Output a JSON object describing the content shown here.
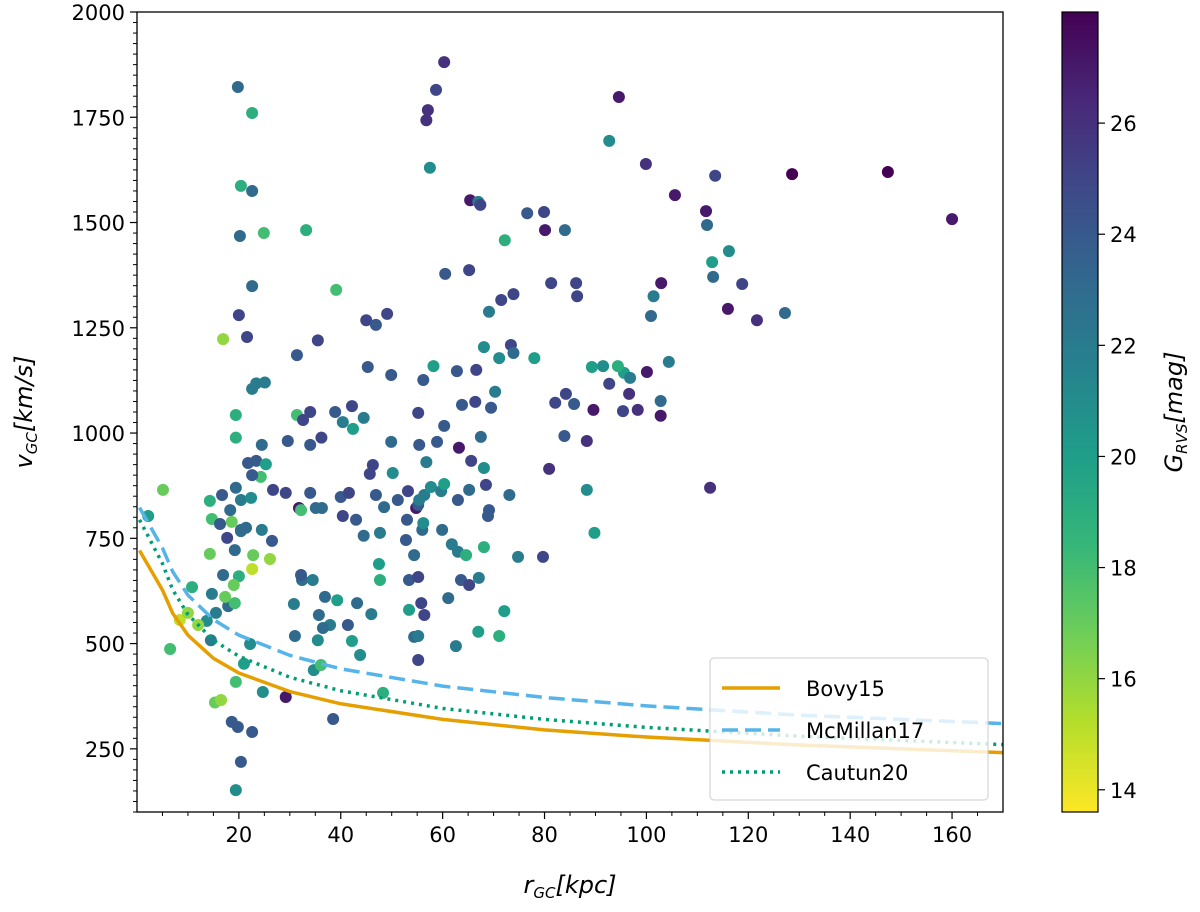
{
  "chart_data": {
    "type": "scatter",
    "xlabel": {
      "main": "r",
      "sub": "GC",
      "unit": "[kpc]"
    },
    "ylabel": {
      "main": "v",
      "sub": "GC",
      "unit": "[km/s]"
    },
    "colorbar_label": {
      "main": "G",
      "sub": "RVS",
      "unit": "[mag]"
    },
    "xlim": [
      0,
      170
    ],
    "ylim": [
      100,
      2000
    ],
    "clim": [
      13.6,
      28
    ],
    "colormap": "viridis_r",
    "xticks": [
      "20",
      "40",
      "60",
      "80",
      "100",
      "120",
      "140",
      "160"
    ],
    "yticks": [
      "250",
      "500",
      "750",
      "1000",
      "1250",
      "1500",
      "1750",
      "2000"
    ],
    "cticks": [
      "14",
      "16",
      "18",
      "20",
      "22",
      "24",
      "26"
    ],
    "grid": false,
    "legend_placement": "lower-right",
    "lines": [
      {
        "name": "Bovy15",
        "color": "#e69f00",
        "style": "solid",
        "r": [
          3,
          5,
          7,
          10,
          15,
          20,
          30,
          40,
          60,
          80,
          100,
          130,
          170
        ],
        "v": [
          721,
          627,
          572,
          520,
          465,
          430,
          386,
          357,
          320,
          295,
          278,
          259,
          241
        ]
      },
      {
        "name": "McMillan17",
        "color": "#56b4e9",
        "style": "dashed",
        "r": [
          3,
          5,
          7,
          10,
          15,
          20,
          30,
          40,
          60,
          80,
          100,
          130,
          170
        ],
        "v": [
          823,
          727,
          671,
          615,
          557,
          520,
          472,
          440,
          399,
          372,
          352,
          330,
          310
        ]
      },
      {
        "name": "Cautun20",
        "color": "#009e73",
        "style": "dotted",
        "r": [
          3,
          5,
          7,
          10,
          15,
          20,
          30,
          40,
          60,
          80,
          100,
          130,
          170
        ],
        "v": [
          794,
          690,
          628,
          569,
          508,
          470,
          420,
          388,
          346,
          320,
          301,
          280,
          260
        ]
      }
    ],
    "points": [
      [
        19.8,
        1822,
        23
      ],
      [
        22.6,
        1760,
        19
      ],
      [
        20.4,
        1587,
        19
      ],
      [
        22.6,
        1575,
        23
      ],
      [
        20.2,
        1468,
        23
      ],
      [
        24.9,
        1475,
        18
      ],
      [
        33.2,
        1482,
        19
      ],
      [
        22.6,
        1349,
        23
      ],
      [
        20.0,
        1280,
        25
      ],
      [
        16.9,
        1223,
        16
      ],
      [
        21.6,
        1228,
        25
      ],
      [
        39.1,
        1340,
        18
      ],
      [
        31.4,
        1185,
        24
      ],
      [
        35.5,
        1220,
        25
      ],
      [
        23.4,
        1118,
        22
      ],
      [
        25.1,
        1120,
        22
      ],
      [
        22.6,
        1105,
        22
      ],
      [
        19.4,
        1043,
        19
      ],
      [
        31.4,
        1043,
        18
      ],
      [
        34.0,
        1050,
        25
      ],
      [
        38.9,
        1050,
        24
      ],
      [
        42.2,
        1064,
        25
      ],
      [
        42.4,
        1010,
        20
      ],
      [
        44.5,
        1036,
        22
      ],
      [
        36.2,
        989,
        25
      ],
      [
        19.4,
        989,
        19
      ],
      [
        21.8,
        929,
        24
      ],
      [
        24.5,
        972,
        23
      ],
      [
        29.6,
        981,
        24
      ],
      [
        23.4,
        934,
        24
      ],
      [
        25.3,
        926,
        20
      ],
      [
        24.3,
        896,
        18
      ],
      [
        22.6,
        900,
        24
      ],
      [
        26.7,
        865,
        25
      ],
      [
        34.0,
        858,
        24
      ],
      [
        31.8,
        822,
        27
      ],
      [
        32.2,
        817,
        18
      ],
      [
        35.1,
        822,
        23
      ],
      [
        36.3,
        822,
        23
      ],
      [
        40.0,
        848,
        24
      ],
      [
        40.4,
        803,
        25
      ],
      [
        41.6,
        858,
        25
      ],
      [
        19.4,
        870,
        23
      ],
      [
        20.4,
        841,
        22
      ],
      [
        16.7,
        853,
        24
      ],
      [
        14.3,
        839,
        19
      ],
      [
        18.3,
        817,
        23
      ],
      [
        22.4,
        846,
        21
      ],
      [
        5.1,
        865,
        17
      ],
      [
        2.2,
        803,
        20
      ],
      [
        14.7,
        796,
        18
      ],
      [
        18.6,
        789,
        17
      ],
      [
        14.3,
        713,
        17
      ],
      [
        19.2,
        722,
        23
      ],
      [
        20.4,
        767,
        23
      ],
      [
        24.5,
        770,
        22
      ],
      [
        26.5,
        744,
        24
      ],
      [
        20.0,
        660,
        19
      ],
      [
        22.8,
        710,
        17
      ],
      [
        26.1,
        701,
        16
      ],
      [
        22.6,
        677,
        15
      ],
      [
        16.9,
        663,
        23
      ],
      [
        14.7,
        618,
        22
      ],
      [
        15.5,
        573,
        22
      ],
      [
        13.7,
        554,
        21
      ],
      [
        17.9,
        589,
        23
      ],
      [
        19.2,
        596,
        18
      ],
      [
        19.0,
        639,
        17
      ],
      [
        17.3,
        611,
        17
      ],
      [
        12.0,
        544,
        16
      ],
      [
        14.5,
        508,
        22
      ],
      [
        6.5,
        487,
        18
      ],
      [
        8.4,
        556,
        15
      ],
      [
        10.0,
        573,
        16
      ],
      [
        15.3,
        360,
        17
      ],
      [
        16.5,
        366,
        16
      ],
      [
        18.6,
        314,
        24
      ],
      [
        19.8,
        302,
        24
      ],
      [
        20.4,
        219,
        24
      ],
      [
        19.4,
        152,
        21
      ],
      [
        22.6,
        290,
        24
      ],
      [
        19.4,
        409,
        18
      ],
      [
        21.0,
        452,
        20
      ],
      [
        22.2,
        499,
        21
      ],
      [
        24.7,
        385,
        21
      ],
      [
        29.2,
        373,
        27
      ],
      [
        38.5,
        321,
        24
      ],
      [
        34.7,
        437,
        21
      ],
      [
        36.1,
        449,
        18
      ],
      [
        35.5,
        508,
        21
      ],
      [
        31.0,
        518,
        23
      ],
      [
        30.8,
        594,
        22
      ],
      [
        32.4,
        651,
        23
      ],
      [
        32.2,
        663,
        24
      ],
      [
        34.5,
        651,
        22
      ],
      [
        35.7,
        568,
        23
      ],
      [
        36.9,
        611,
        23
      ],
      [
        37.9,
        544,
        22
      ],
      [
        36.5,
        537,
        23
      ],
      [
        39.3,
        603,
        20
      ],
      [
        41.4,
        544,
        24
      ],
      [
        42.2,
        506,
        20
      ],
      [
        43.8,
        473,
        21
      ],
      [
        46.0,
        570,
        22
      ],
      [
        47.5,
        689,
        20
      ],
      [
        47.7,
        651,
        19
      ],
      [
        43.2,
        596,
        23
      ],
      [
        46.3,
        924,
        25
      ],
      [
        46.9,
        853,
        24
      ],
      [
        43.0,
        794,
        24
      ],
      [
        44.5,
        756,
        23
      ],
      [
        47.7,
        763,
        22
      ],
      [
        48.5,
        824,
        23
      ],
      [
        52.8,
        746,
        24
      ],
      [
        54.4,
        710,
        23
      ],
      [
        54.8,
        822,
        27
      ],
      [
        55.2,
        829,
        24
      ],
      [
        53.0,
        794,
        24
      ],
      [
        56.0,
        770,
        23
      ],
      [
        56.2,
        786,
        21
      ],
      [
        53.4,
        651,
        24
      ],
      [
        55.2,
        658,
        25
      ],
      [
        55.8,
        596,
        25
      ],
      [
        53.4,
        580,
        20
      ],
      [
        54.4,
        516,
        23
      ],
      [
        56.4,
        568,
        25
      ],
      [
        55.2,
        461,
        25
      ],
      [
        50.2,
        905,
        21
      ],
      [
        51.2,
        841,
        24
      ],
      [
        49.9,
        979,
        23
      ],
      [
        53.2,
        862,
        25
      ],
      [
        55.4,
        841,
        22
      ],
      [
        56.4,
        853,
        22
      ],
      [
        57.7,
        872,
        21
      ],
      [
        59.7,
        862,
        22
      ],
      [
        60.3,
        879,
        20
      ],
      [
        56.8,
        931,
        22
      ],
      [
        55.4,
        972,
        24
      ],
      [
        55.2,
        1048,
        25
      ],
      [
        58.9,
        979,
        24
      ],
      [
        60.3,
        1017,
        24
      ],
      [
        59.9,
        770,
        23
      ],
      [
        61.8,
        736,
        22
      ],
      [
        63.0,
        718,
        22
      ],
      [
        64.6,
        710,
        19
      ],
      [
        63.0,
        841,
        24
      ],
      [
        65.2,
        865,
        23
      ],
      [
        65.6,
        934,
        25
      ],
      [
        67.5,
        991,
        23
      ],
      [
        68.1,
        917,
        21
      ],
      [
        68.5,
        877,
        25
      ],
      [
        63.2,
        965,
        27
      ],
      [
        63.8,
        1067,
        24
      ],
      [
        66.4,
        1074,
        25
      ],
      [
        69.5,
        1060,
        24
      ],
      [
        70.3,
        1098,
        22
      ],
      [
        66.6,
        1150,
        25
      ],
      [
        68.1,
        1204,
        21
      ],
      [
        73.4,
        1209,
        25
      ],
      [
        62.8,
        1147,
        24
      ],
      [
        56.2,
        1126,
        24
      ],
      [
        58.2,
        1159,
        20
      ],
      [
        49.9,
        1138,
        24
      ],
      [
        45.3,
        1157,
        24
      ],
      [
        45.0,
        1268,
        25
      ],
      [
        46.9,
        1257,
        24
      ],
      [
        49.1,
        1283,
        25
      ],
      [
        60.5,
        1378,
        24
      ],
      [
        65.2,
        1387,
        25
      ],
      [
        71.1,
        1178,
        21
      ],
      [
        69.1,
        1288,
        22
      ],
      [
        71.5,
        1316,
        25
      ],
      [
        73.9,
        1330,
        25
      ],
      [
        72.2,
        1458,
        19
      ],
      [
        73.9,
        1190,
        23
      ],
      [
        78.0,
        1178,
        20
      ],
      [
        81.3,
        1356,
        25
      ],
      [
        79.9,
        1525,
        25
      ],
      [
        76.6,
        1522,
        24
      ],
      [
        80.1,
        1482,
        27
      ],
      [
        84.0,
        1482,
        23
      ],
      [
        86.2,
        1356,
        25
      ],
      [
        86.4,
        1325,
        25
      ],
      [
        65.4,
        1553,
        27
      ],
      [
        67.0,
        1549,
        22
      ],
      [
        67.4,
        1542,
        25
      ],
      [
        57.5,
        1630,
        21
      ],
      [
        56.8,
        1743,
        26
      ],
      [
        57.1,
        1767,
        26
      ],
      [
        58.7,
        1815,
        25
      ],
      [
        60.3,
        1881,
        26
      ],
      [
        92.7,
        1694,
        21
      ],
      [
        94.6,
        1798,
        27
      ],
      [
        99.9,
        1639,
        26
      ],
      [
        105.6,
        1565,
        27
      ],
      [
        113.5,
        1611,
        25
      ],
      [
        128.6,
        1615,
        28
      ],
      [
        147.4,
        1620,
        28
      ],
      [
        160.0,
        1508,
        27
      ],
      [
        111.9,
        1494,
        23
      ],
      [
        111.7,
        1527,
        27
      ],
      [
        112.9,
        1406,
        20
      ],
      [
        116.2,
        1432,
        21
      ],
      [
        118.8,
        1354,
        25
      ],
      [
        113.1,
        1371,
        23
      ],
      [
        116.0,
        1295,
        27
      ],
      [
        121.7,
        1268,
        26
      ],
      [
        127.2,
        1285,
        23
      ],
      [
        102.9,
        1356,
        27
      ],
      [
        101.4,
        1325,
        22
      ],
      [
        100.9,
        1278,
        23
      ],
      [
        104.4,
        1169,
        22
      ],
      [
        100.1,
        1145,
        27
      ],
      [
        95.6,
        1143,
        20
      ],
      [
        96.8,
        1131,
        22
      ],
      [
        94.4,
        1159,
        19
      ],
      [
        91.5,
        1159,
        21
      ],
      [
        89.3,
        1157,
        20
      ],
      [
        92.7,
        1117,
        25
      ],
      [
        96.6,
        1093,
        26
      ],
      [
        102.8,
        1076,
        23
      ],
      [
        98.3,
        1055,
        26
      ],
      [
        95.4,
        1052,
        25
      ],
      [
        102.8,
        1041,
        27
      ],
      [
        89.6,
        1055,
        27
      ],
      [
        84.2,
        1093,
        25
      ],
      [
        85.8,
        1069,
        24
      ],
      [
        82.1,
        1072,
        25
      ],
      [
        83.9,
        993,
        24
      ],
      [
        88.3,
        981,
        26
      ],
      [
        80.9,
        915,
        26
      ],
      [
        112.5,
        870,
        26
      ],
      [
        88.3,
        865,
        21
      ],
      [
        89.8,
        763,
        20
      ],
      [
        79.7,
        706,
        25
      ],
      [
        74.8,
        706,
        22
      ],
      [
        73.1,
        853,
        23
      ],
      [
        69.1,
        817,
        24
      ],
      [
        68.9,
        803,
        24
      ],
      [
        68.1,
        729,
        19
      ],
      [
        63.6,
        651,
        24
      ],
      [
        65.2,
        639,
        25
      ],
      [
        67.1,
        656,
        22
      ],
      [
        61.1,
        608,
        23
      ],
      [
        67.0,
        528,
        20
      ],
      [
        71.1,
        518,
        19
      ],
      [
        72.1,
        577,
        20
      ],
      [
        62.6,
        494,
        22
      ],
      [
        55.2,
        518,
        22
      ],
      [
        48.3,
        383,
        19
      ],
      [
        29.2,
        858,
        25
      ],
      [
        32.6,
        1031,
        25
      ],
      [
        34.0,
        972,
        24
      ],
      [
        40.4,
        1026,
        22
      ],
      [
        45.7,
        903,
        25
      ],
      [
        21.4,
        775,
        23
      ],
      [
        17.7,
        751,
        25
      ],
      [
        20.4,
        770,
        23
      ],
      [
        10.8,
        634,
        19
      ],
      [
        16.3,
        784,
        24
      ]
    ]
  }
}
